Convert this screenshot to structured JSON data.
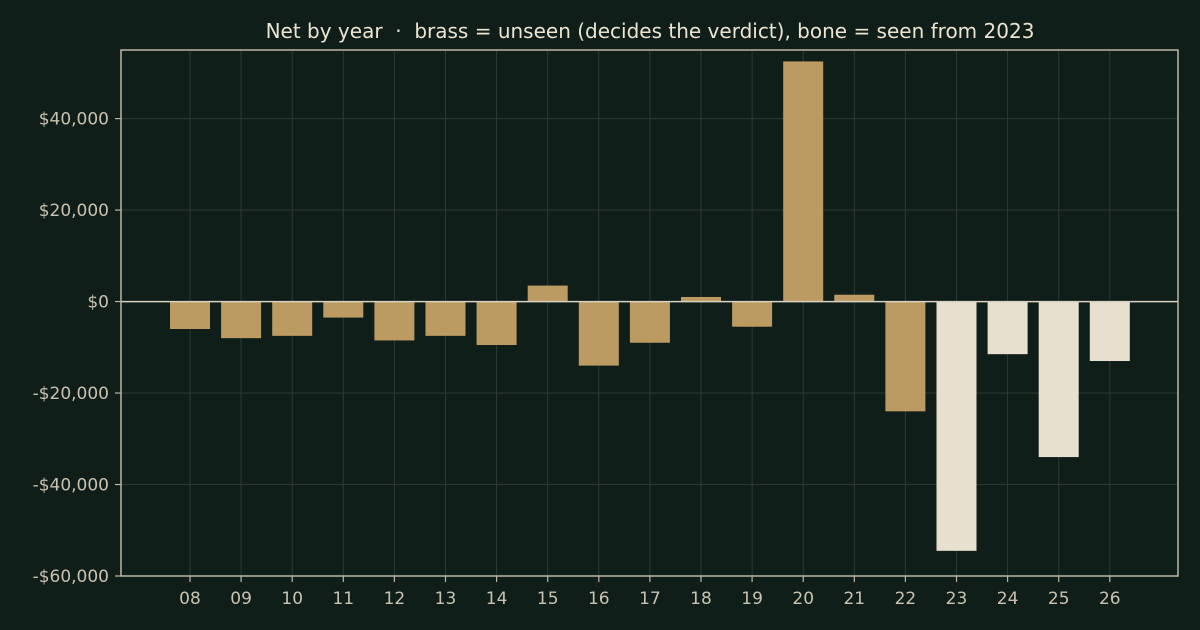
{
  "chart_data": {
    "type": "bar",
    "title": "Net by year  ·  brass = unseen (decides the verdict), bone = seen from 2023",
    "xlabel": "",
    "ylabel": "",
    "categories": [
      "08",
      "09",
      "10",
      "11",
      "12",
      "13",
      "14",
      "15",
      "16",
      "17",
      "18",
      "19",
      "20",
      "21",
      "22",
      "23",
      "24",
      "25",
      "26"
    ],
    "values": [
      -6000,
      -8000,
      -7500,
      -3500,
      -8500,
      -7500,
      -9500,
      3500,
      -14000,
      -9000,
      1000,
      -5500,
      52500,
      1500,
      -24000,
      -54500,
      -11500,
      -34000,
      -13000
    ],
    "bar_group": [
      "unseen",
      "unseen",
      "unseen",
      "unseen",
      "unseen",
      "unseen",
      "unseen",
      "unseen",
      "unseen",
      "unseen",
      "unseen",
      "unseen",
      "unseen",
      "unseen",
      "unseen",
      "seen",
      "seen",
      "seen",
      "seen"
    ],
    "group_colors": {
      "unseen": "#bc9b63",
      "seen": "#e8e0cf"
    },
    "ylim": [
      -60000,
      55000
    ],
    "yticks": [
      {
        "value": 40000,
        "label": "$40,000"
      },
      {
        "value": 20000,
        "label": "$20,000"
      },
      {
        "value": 0,
        "label": "$0"
      },
      {
        "value": -20000,
        "label": "-$20,000"
      },
      {
        "value": -40000,
        "label": "-$40,000"
      },
      {
        "value": -60000,
        "label": "-$60,000"
      }
    ],
    "grid": true
  }
}
